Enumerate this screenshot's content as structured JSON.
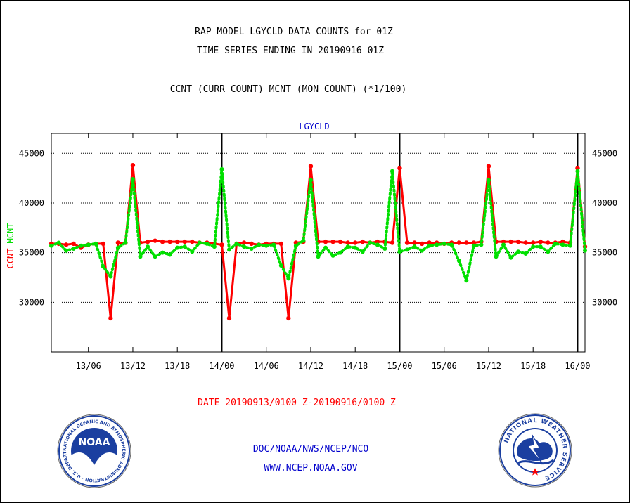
{
  "titles": {
    "line1": "RAP MODEL LGYCLD DATA COUNTS for 01Z",
    "line2": "TIME SERIES ENDING IN 20190916 01Z",
    "subtitle": "CCNT (CURR COUNT) MCNT (MON COUNT) (*1/100)"
  },
  "date_range": "DATE 20190913/0100 Z-20190916/0100 Z",
  "footer": {
    "line1": "DOC/NOAA/NWS/NCEP/NCO",
    "line2": "WWW.NCEP.NOAA.GOV"
  },
  "logos": {
    "noaa": {
      "name": "noaa-logo",
      "text": "NOAA",
      "ring_text": "NATIONAL OCEANIC AND ATMOSPHERIC ADMINISTRATION · U.S. DEPARTMENT OF COMMERCE"
    },
    "nws": {
      "name": "nws-logo",
      "ring_text": "NATIONAL WEATHER SERVICE"
    }
  },
  "colors": {
    "ccnt": "#ff0000",
    "mcnt": "#00e000",
    "panel_label": "#0000cc",
    "grid": "#000000"
  },
  "chart_data": {
    "type": "line",
    "title": "LGYCLD",
    "ylabel_parts": [
      "CCNT",
      "MCNT"
    ],
    "ylim": [
      25000,
      47000
    ],
    "yticks": [
      30000,
      35000,
      40000,
      45000
    ],
    "ytick_labels": [
      "30000",
      "35000",
      "40000",
      "45000"
    ],
    "xlim": [
      0,
      72
    ],
    "xticks": [
      5,
      11,
      17,
      23,
      29,
      35,
      41,
      47,
      53,
      59,
      65,
      71
    ],
    "xtick_labels": [
      "13/06",
      "13/12",
      "13/18",
      "14/00",
      "14/06",
      "14/12",
      "14/18",
      "15/00",
      "15/06",
      "15/12",
      "15/18",
      "16/00"
    ],
    "day_boundaries": [
      23,
      47,
      71
    ],
    "grid": "horizontal dotted",
    "series": [
      {
        "name": "CCNT",
        "style": "solid",
        "values": [
          35900,
          35900,
          35800,
          35900,
          35500,
          35800,
          35900,
          35900,
          28400,
          36000,
          36000,
          43800,
          36000,
          36100,
          36200,
          36100,
          36100,
          36100,
          36100,
          36100,
          36000,
          36000,
          35900,
          35800,
          28400,
          35900,
          36000,
          35900,
          35800,
          35900,
          35900,
          35900,
          28400,
          36000,
          36100,
          43700,
          36100,
          36100,
          36100,
          36100,
          36000,
          36000,
          36100,
          36000,
          36100,
          36100,
          36000,
          43500,
          36000,
          36000,
          35900,
          36000,
          36000,
          35900,
          36000,
          36000,
          36000,
          36000,
          36100,
          43700,
          36100,
          36100,
          36100,
          36100,
          36000,
          36000,
          36100,
          36000,
          36000,
          36100,
          36000,
          43500,
          35600
        ]
      },
      {
        "name": "MCNT",
        "style": "dotted",
        "values": [
          35700,
          36000,
          35200,
          35400,
          35700,
          35800,
          35900,
          33600,
          32600,
          35500,
          36000,
          42400,
          34600,
          35600,
          34600,
          35000,
          34800,
          35500,
          35600,
          35100,
          36000,
          35900,
          35600,
          43400,
          35300,
          35900,
          35600,
          35400,
          35800,
          35700,
          35800,
          33700,
          32400,
          35700,
          36200,
          42300,
          34600,
          35500,
          34700,
          35000,
          35600,
          35500,
          35100,
          36000,
          35800,
          35400,
          43200,
          35100,
          35300,
          35600,
          35200,
          35700,
          35800,
          35900,
          35800,
          34200,
          32200,
          35700,
          35800,
          42300,
          34600,
          35800,
          34500,
          35100,
          34900,
          35600,
          35600,
          35100,
          35900,
          35800,
          35700,
          43200,
          35200
        ]
      }
    ]
  }
}
